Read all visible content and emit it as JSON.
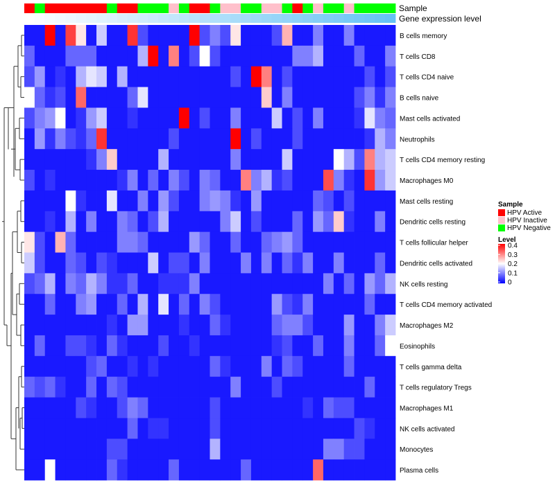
{
  "chart_data": {
    "type": "heatmap",
    "annotation_tracks": [
      "Sample",
      "Gene expression level"
    ],
    "rows": [
      "B cells memory",
      "T cells CD8",
      "T cells CD4 naive",
      "B cells naive",
      "Mast cells activated",
      "Neutrophils",
      "T cells CD4 memory resting",
      "Macrophages M0",
      "Mast cells resting",
      "Dendritic cells resting",
      "T cells follicular helper",
      "Dendritic cells activated",
      "NK cells resting",
      "T cells CD4 memory activated",
      "Macrophages M2",
      "Eosinophils",
      "T cells gamma delta",
      "T cells regulatory  Tregs",
      "Macrophages M1",
      "NK cells activated",
      "Monocytes",
      "Plasma cells"
    ],
    "columns": 36,
    "sample_annotation": [
      "A",
      "N",
      "A",
      "A",
      "A",
      "A",
      "A",
      "A",
      "N",
      "A",
      "A",
      "N",
      "N",
      "N",
      "I",
      "N",
      "A",
      "A",
      "N",
      "I",
      "I",
      "N",
      "N",
      "I",
      "I",
      "N",
      "A",
      "N",
      "I",
      "N",
      "N",
      "I",
      "N",
      "N",
      "N",
      "N"
    ],
    "gene_expression_gradient": [
      "#ffffff",
      "#66c2f5"
    ],
    "sample_legend": {
      "title": "Sample",
      "items": [
        {
          "label": "HPV Active",
          "color": "#ff0000"
        },
        {
          "label": "HPV Inactive",
          "color": "#ffc0cb"
        },
        {
          "label": "HPV Negative",
          "color": "#00ff00"
        }
      ]
    },
    "level_legend": {
      "title": "Level",
      "ticks": [
        "0.4",
        "0.3",
        "0.2",
        "0.1",
        "0"
      ],
      "range": [
        0,
        0.4
      ],
      "colors": [
        "#0000ff",
        "#ffffff",
        "#ff0000"
      ]
    },
    "values": [
      [
        0.02,
        0.02,
        0.4,
        0.02,
        0.35,
        0.22,
        0.02,
        0.16,
        0.02,
        0.02,
        0.36,
        0.06,
        0.02,
        0.02,
        0.02,
        0.02,
        0.4,
        0.06,
        0.1,
        0.06,
        0.22,
        0.02,
        0.02,
        0.02,
        0.06,
        0.26,
        0.02,
        0.02,
        0.1,
        0.02,
        0.02,
        0.1,
        0.02,
        0.02,
        0.02,
        0.02
      ],
      [
        0.08,
        0.02,
        0.02,
        0.02,
        0.08,
        0.08,
        0.08,
        0.02,
        0.02,
        0.02,
        0.02,
        0.14,
        0.4,
        0.02,
        0.3,
        0.02,
        0.06,
        0.2,
        0.06,
        0.02,
        0.02,
        0.02,
        0.02,
        0.02,
        0.02,
        0.02,
        0.1,
        0.1,
        0.14,
        0.02,
        0.02,
        0.02,
        0.08,
        0.02,
        0.02,
        0.1
      ],
      [
        0.06,
        0.12,
        0.02,
        0.04,
        0.02,
        0.14,
        0.18,
        0.16,
        0.02,
        0.14,
        0.02,
        0.02,
        0.02,
        0.02,
        0.02,
        0.02,
        0.02,
        0.02,
        0.02,
        0.02,
        0.06,
        0.02,
        0.4,
        0.3,
        0.02,
        0.06,
        0.02,
        0.02,
        0.02,
        0.02,
        0.02,
        0.02,
        0.02,
        0.06,
        0.02,
        0.06
      ],
      [
        0.2,
        0.08,
        0.04,
        0.06,
        0.02,
        0.32,
        0.02,
        0.02,
        0.02,
        0.02,
        0.08,
        0.18,
        0.02,
        0.02,
        0.02,
        0.02,
        0.02,
        0.02,
        0.02,
        0.02,
        0.02,
        0.02,
        0.02,
        0.24,
        0.02,
        0.1,
        0.02,
        0.02,
        0.02,
        0.02,
        0.02,
        0.02,
        0.06,
        0.1,
        0.04,
        0.1
      ],
      [
        0.06,
        0.1,
        0.12,
        0.2,
        0.02,
        0.04,
        0.12,
        0.16,
        0.02,
        0.02,
        0.04,
        0.02,
        0.02,
        0.02,
        0.02,
        0.4,
        0.02,
        0.06,
        0.02,
        0.02,
        0.1,
        0.02,
        0.02,
        0.02,
        0.16,
        0.02,
        0.06,
        0.02,
        0.1,
        0.02,
        0.02,
        0.02,
        0.04,
        0.18,
        0.1,
        0.08
      ],
      [
        0.02,
        0.12,
        0.04,
        0.1,
        0.06,
        0.04,
        0.08,
        0.36,
        0.02,
        0.02,
        0.02,
        0.02,
        0.02,
        0.02,
        0.06,
        0.02,
        0.02,
        0.02,
        0.02,
        0.02,
        0.4,
        0.02,
        0.06,
        0.02,
        0.02,
        0.02,
        0.06,
        0.02,
        0.02,
        0.02,
        0.02,
        0.02,
        0.02,
        0.04,
        0.14,
        0.1
      ],
      [
        0.02,
        0.02,
        0.02,
        0.02,
        0.02,
        0.02,
        0.04,
        0.1,
        0.24,
        0.02,
        0.02,
        0.02,
        0.02,
        0.14,
        0.02,
        0.02,
        0.02,
        0.02,
        0.02,
        0.02,
        0.1,
        0.02,
        0.02,
        0.02,
        0.02,
        0.16,
        0.02,
        0.02,
        0.02,
        0.02,
        0.2,
        0.14,
        0.06,
        0.3,
        0.14,
        0.16
      ],
      [
        0.06,
        0.02,
        0.04,
        0.02,
        0.02,
        0.02,
        0.02,
        0.02,
        0.02,
        0.04,
        0.1,
        0.02,
        0.08,
        0.02,
        0.1,
        0.06,
        0.02,
        0.1,
        0.08,
        0.02,
        0.02,
        0.3,
        0.1,
        0.14,
        0.04,
        0.06,
        0.02,
        0.02,
        0.02,
        0.34,
        0.1,
        0.04,
        0.02,
        0.36,
        0.12,
        0.16
      ],
      [
        0.02,
        0.02,
        0.02,
        0.02,
        0.2,
        0.04,
        0.02,
        0.02,
        0.18,
        0.02,
        0.02,
        0.1,
        0.02,
        0.12,
        0.06,
        0.02,
        0.02,
        0.1,
        0.12,
        0.1,
        0.04,
        0.02,
        0.12,
        0.02,
        0.02,
        0.02,
        0.02,
        0.02,
        0.08,
        0.06,
        0.02,
        0.06,
        0.02,
        0.02,
        0.02,
        0.02
      ],
      [
        0.02,
        0.02,
        0.04,
        0.02,
        0.14,
        0.02,
        0.1,
        0.02,
        0.02,
        0.1,
        0.08,
        0.02,
        0.06,
        0.14,
        0.02,
        0.02,
        0.02,
        0.02,
        0.02,
        0.1,
        0.16,
        0.02,
        0.06,
        0.02,
        0.02,
        0.02,
        0.08,
        0.02,
        0.12,
        0.08,
        0.24,
        0.04,
        0.02,
        0.02,
        0.1,
        0.02
      ],
      [
        0.22,
        0.06,
        0.02,
        0.26,
        0.08,
        0.02,
        0.02,
        0.02,
        0.02,
        0.1,
        0.1,
        0.08,
        0.02,
        0.02,
        0.02,
        0.02,
        0.12,
        0.08,
        0.02,
        0.02,
        0.08,
        0.02,
        0.02,
        0.08,
        0.1,
        0.12,
        0.08,
        0.02,
        0.02,
        0.02,
        0.02,
        0.02,
        0.02,
        0.02,
        0.02,
        0.02
      ],
      [
        0.16,
        0.06,
        0.02,
        0.02,
        0.08,
        0.06,
        0.02,
        0.06,
        0.04,
        0.02,
        0.02,
        0.02,
        0.16,
        0.02,
        0.06,
        0.06,
        0.02,
        0.1,
        0.02,
        0.02,
        0.02,
        0.1,
        0.02,
        0.1,
        0.02,
        0.08,
        0.04,
        0.1,
        0.02,
        0.02,
        0.1,
        0.02,
        0.02,
        0.02,
        0.08,
        0.02
      ],
      [
        0.06,
        0.08,
        0.14,
        0.02,
        0.1,
        0.08,
        0.14,
        0.1,
        0.04,
        0.04,
        0.08,
        0.02,
        0.02,
        0.04,
        0.04,
        0.04,
        0.1,
        0.02,
        0.02,
        0.02,
        0.02,
        0.02,
        0.02,
        0.02,
        0.02,
        0.02,
        0.02,
        0.02,
        0.02,
        0.1,
        0.02,
        0.08,
        0.02,
        0.12,
        0.08,
        0.14
      ],
      [
        0.02,
        0.02,
        0.08,
        0.02,
        0.02,
        0.1,
        0.12,
        0.02,
        0.02,
        0.08,
        0.02,
        0.14,
        0.02,
        0.18,
        0.02,
        0.08,
        0.02,
        0.1,
        0.06,
        0.02,
        0.02,
        0.02,
        0.02,
        0.02,
        0.12,
        0.06,
        0.04,
        0.1,
        0.02,
        0.02,
        0.02,
        0.02,
        0.02,
        0.08,
        0.02,
        0.02
      ],
      [
        0.02,
        0.02,
        0.02,
        0.02,
        0.02,
        0.02,
        0.02,
        0.02,
        0.04,
        0.02,
        0.12,
        0.12,
        0.02,
        0.02,
        0.02,
        0.04,
        0.02,
        0.02,
        0.08,
        0.04,
        0.02,
        0.02,
        0.02,
        0.02,
        0.08,
        0.1,
        0.1,
        0.06,
        0.02,
        0.02,
        0.02,
        0.12,
        0.02,
        0.02,
        0.1,
        0.16
      ],
      [
        0.02,
        0.08,
        0.02,
        0.02,
        0.06,
        0.06,
        0.04,
        0.02,
        0.08,
        0.04,
        0.02,
        0.02,
        0.02,
        0.06,
        0.02,
        0.02,
        0.04,
        0.02,
        0.02,
        0.02,
        0.02,
        0.02,
        0.02,
        0.02,
        0.04,
        0.06,
        0.02,
        0.02,
        0.08,
        0.02,
        0.02,
        0.1,
        0.02,
        0.02,
        0.08,
        0.2
      ],
      [
        0.02,
        0.02,
        0.02,
        0.02,
        0.02,
        0.02,
        0.06,
        0.08,
        0.02,
        0.02,
        0.04,
        0.02,
        0.04,
        0.02,
        0.02,
        0.02,
        0.02,
        0.02,
        0.08,
        0.04,
        0.02,
        0.02,
        0.02,
        0.1,
        0.02,
        0.08,
        0.06,
        0.02,
        0.02,
        0.02,
        0.02,
        0.08,
        0.02,
        0.02,
        0.02,
        0.02
      ],
      [
        0.08,
        0.06,
        0.08,
        0.04,
        0.02,
        0.02,
        0.08,
        0.02,
        0.08,
        0.06,
        0.02,
        0.02,
        0.02,
        0.02,
        0.02,
        0.02,
        0.02,
        0.02,
        0.02,
        0.02,
        0.1,
        0.02,
        0.02,
        0.02,
        0.06,
        0.02,
        0.02,
        0.02,
        0.02,
        0.02,
        0.02,
        0.02,
        0.02,
        0.08,
        0.02,
        0.02
      ],
      [
        0.02,
        0.02,
        0.02,
        0.02,
        0.02,
        0.06,
        0.04,
        0.02,
        0.02,
        0.06,
        0.1,
        0.08,
        0.02,
        0.02,
        0.02,
        0.02,
        0.02,
        0.02,
        0.06,
        0.02,
        0.02,
        0.02,
        0.02,
        0.02,
        0.02,
        0.02,
        0.02,
        0.04,
        0.02,
        0.08,
        0.06,
        0.06,
        0.02,
        0.02,
        0.02,
        0.02
      ],
      [
        0.02,
        0.02,
        0.02,
        0.02,
        0.02,
        0.02,
        0.02,
        0.02,
        0.02,
        0.02,
        0.08,
        0.02,
        0.04,
        0.04,
        0.02,
        0.02,
        0.02,
        0.02,
        0.06,
        0.02,
        0.02,
        0.02,
        0.02,
        0.02,
        0.02,
        0.02,
        0.02,
        0.02,
        0.02,
        0.02,
        0.02,
        0.02,
        0.06,
        0.04,
        0.02,
        0.02
      ],
      [
        0.02,
        0.02,
        0.02,
        0.02,
        0.02,
        0.02,
        0.02,
        0.02,
        0.06,
        0.06,
        0.02,
        0.02,
        0.02,
        0.02,
        0.02,
        0.02,
        0.02,
        0.02,
        0.14,
        0.02,
        0.02,
        0.02,
        0.02,
        0.02,
        0.02,
        0.02,
        0.02,
        0.02,
        0.02,
        0.1,
        0.1,
        0.06,
        0.06,
        0.02,
        0.02,
        0.02
      ],
      [
        0.02,
        0.02,
        0.2,
        0.02,
        0.02,
        0.02,
        0.02,
        0.02,
        0.08,
        0.04,
        0.02,
        0.02,
        0.02,
        0.02,
        0.08,
        0.02,
        0.02,
        0.02,
        0.02,
        0.02,
        0.02,
        0.08,
        0.02,
        0.02,
        0.02,
        0.02,
        0.02,
        0.02,
        0.32,
        0.02,
        0.02,
        0.02,
        0.02,
        0.02,
        0.02,
        0.02
      ]
    ]
  }
}
